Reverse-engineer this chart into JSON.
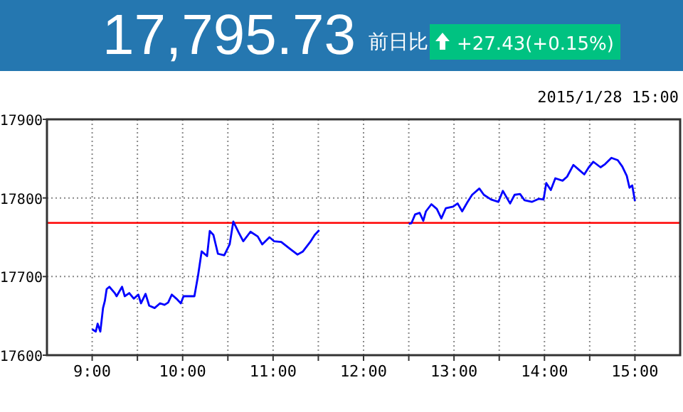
{
  "chart_data": {
    "type": "line",
    "title": "17,795.73",
    "subtitle": "前日比",
    "annotations": [
      "+27.43(+0.15%)",
      "2015/1/28 15:00"
    ],
    "x": [
      9.0,
      9.04,
      9.06,
      9.09,
      9.12,
      9.14,
      9.16,
      9.19,
      9.25,
      9.27,
      9.33,
      9.36,
      9.41,
      9.46,
      9.51,
      9.54,
      9.59,
      9.63,
      9.69,
      9.75,
      9.8,
      9.84,
      9.88,
      9.93,
      9.98,
      10.01,
      10.13,
      10.17,
      10.21,
      10.27,
      10.3,
      10.34,
      10.39,
      10.46,
      10.52,
      10.56,
      10.62,
      10.67,
      10.75,
      10.83,
      10.88,
      10.96,
      11.01,
      11.09,
      11.19,
      11.27,
      11.33,
      11.41,
      11.46,
      11.51,
      12.0,
      12.5,
      12.53,
      12.57,
      12.62,
      12.66,
      12.69,
      12.75,
      12.81,
      12.86,
      12.91,
      12.99,
      13.04,
      13.09,
      13.15,
      13.2,
      13.28,
      13.33,
      13.41,
      13.49,
      13.54,
      13.62,
      13.67,
      13.73,
      13.78,
      13.86,
      13.94,
      13.99,
      14.02,
      14.07,
      14.12,
      14.2,
      14.25,
      14.32,
      14.38,
      14.44,
      14.49,
      14.54,
      14.62,
      14.67,
      14.74,
      14.81,
      14.86,
      14.91,
      14.94,
      14.97,
      15.0
    ],
    "series": [
      {
        "color": "#0000ff",
        "values": [
          17633,
          17630,
          17640,
          17630,
          17660,
          17669,
          17684,
          17687,
          17679,
          17675,
          17687,
          17675,
          17679,
          17672,
          17677,
          17666,
          17678,
          17663,
          17660,
          17666,
          17664,
          17667,
          17677,
          17672,
          17666,
          17675,
          17675,
          17701,
          17732,
          17726,
          17758,
          17753,
          17729,
          17727,
          17741,
          17770,
          17756,
          17745,
          17757,
          17751,
          17741,
          17750,
          17745,
          17744,
          17735,
          17728,
          17732,
          17744,
          17753,
          17759,
          null,
          17767,
          17768,
          17779,
          17781,
          17771,
          17783,
          17792,
          17786,
          17774,
          17787,
          17789,
          17793,
          17783,
          17795,
          17804,
          17812,
          17804,
          17798,
          17795,
          17809,
          17793,
          17804,
          17805,
          17797,
          17795,
          17799,
          17798,
          17819,
          17810,
          17825,
          17822,
          17827,
          17842,
          17836,
          17830,
          17839,
          17846,
          17839,
          17843,
          17851,
          17848,
          17840,
          17828,
          17813,
          17816,
          17796
        ]
      }
    ],
    "xlim": [
      8.5,
      15.5
    ],
    "xticks": [
      {
        "value": 9,
        "label": "9:00"
      },
      {
        "value": 9.5,
        "label": null
      },
      {
        "value": 10,
        "label": "10:00"
      },
      {
        "value": 10.5,
        "label": null
      },
      {
        "value": 11,
        "label": "11:00"
      },
      {
        "value": 11.5,
        "label": null
      },
      {
        "value": 12,
        "label": "12:00"
      },
      {
        "value": 12.5,
        "label": null
      },
      {
        "value": 13,
        "label": "13:00"
      },
      {
        "value": 13.5,
        "label": null
      },
      {
        "value": 14,
        "label": "14:00"
      },
      {
        "value": 14.5,
        "label": null
      },
      {
        "value": 15,
        "label": "15:00"
      }
    ],
    "ylim": [
      17600,
      17900
    ],
    "yticks": [
      17600,
      17700,
      17800,
      17900
    ],
    "ref_lines": [
      {
        "axis": "y",
        "value": 17768.3,
        "color": "#ff0000"
      }
    ],
    "grid": true,
    "line_style": "solid",
    "marker": "none"
  }
}
